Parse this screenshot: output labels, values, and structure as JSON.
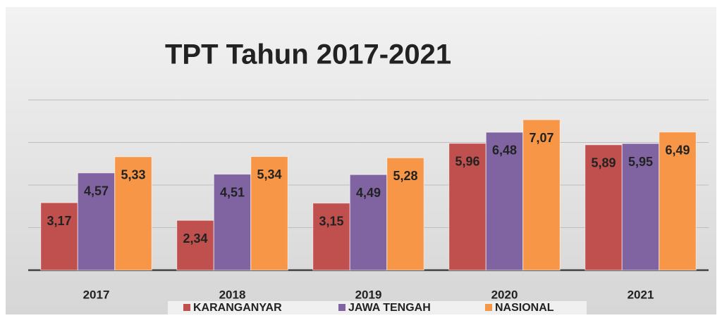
{
  "chart_data": {
    "type": "bar",
    "title": "TPT Tahun 2017-2021",
    "categories": [
      "2017",
      "2018",
      "2019",
      "2020",
      "2021"
    ],
    "series": [
      {
        "name": "KARANGANYAR",
        "color": "#c0504d",
        "values": [
          3.17,
          2.34,
          3.15,
          5.96,
          5.89
        ],
        "value_labels": [
          "3,17",
          "2,34",
          "3,15",
          "5,96",
          "5,89"
        ]
      },
      {
        "name": "JAWA TENGAH",
        "color": "#8064a2",
        "values": [
          4.57,
          4.51,
          4.49,
          6.48,
          5.95
        ],
        "value_labels": [
          "4,57",
          "4,51",
          "4,49",
          "6,48",
          "5,95"
        ]
      },
      {
        "name": "NASIONAL",
        "color": "#f79646",
        "values": [
          5.33,
          5.34,
          5.28,
          7.07,
          6.49
        ],
        "value_labels": [
          "5,33",
          "5,34",
          "5,28",
          "7,07",
          "6,49"
        ]
      }
    ],
    "ylim": [
      0,
      8
    ],
    "yticks": [
      0,
      2,
      4,
      6,
      8
    ],
    "grid": true,
    "legend": "bottom"
  }
}
